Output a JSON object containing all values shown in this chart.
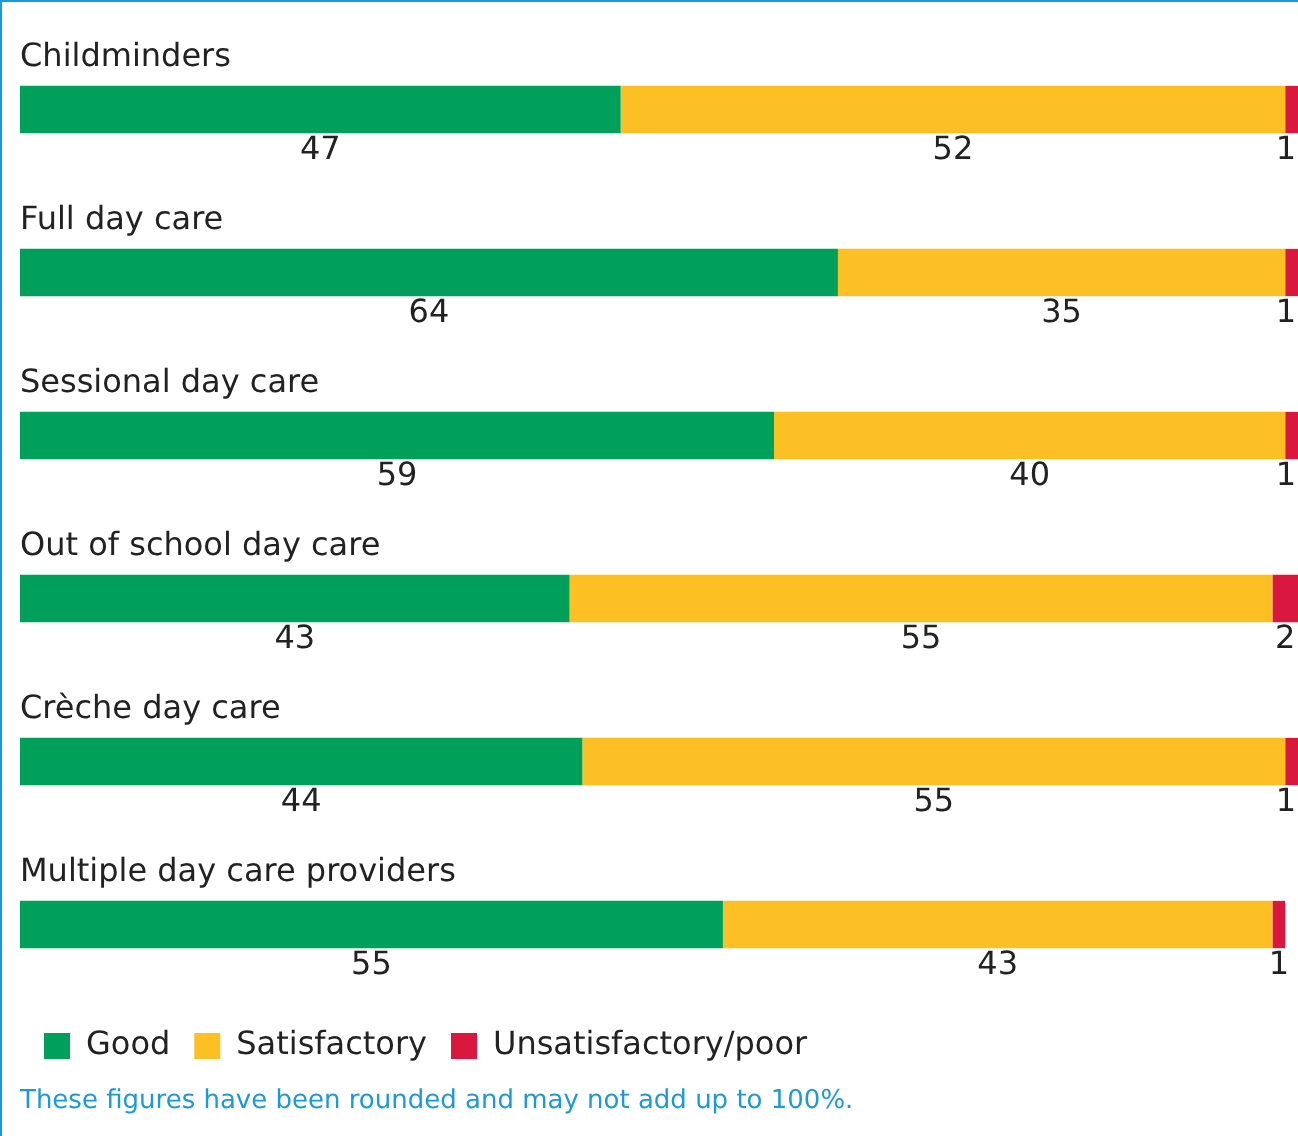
{
  "chart_data": {
    "type": "bar",
    "orientation": "horizontal",
    "stacked": true,
    "data_labels": true,
    "legend": "bottom left",
    "tick_labels": false,
    "categories": [
      "Childminders",
      "Full day care",
      "Sessional day care",
      "Out of school day care",
      "Crèche day care",
      "Multiple day care providers"
    ],
    "series": [
      {
        "name": "Good",
        "color": "#00a05a",
        "values": [
          47,
          64,
          59,
          43,
          44,
          55
        ]
      },
      {
        "name": "Satisfactory",
        "color": "#fcc024",
        "values": [
          52,
          35,
          40,
          55,
          55,
          43
        ]
      },
      {
        "name": "Unsatisfactory/poor",
        "color": "#d9173f",
        "values": [
          1,
          1,
          1,
          2,
          1,
          1
        ]
      }
    ],
    "annotations": [
      "These figures have been rounded and may not add up to 100%."
    ]
  }
}
